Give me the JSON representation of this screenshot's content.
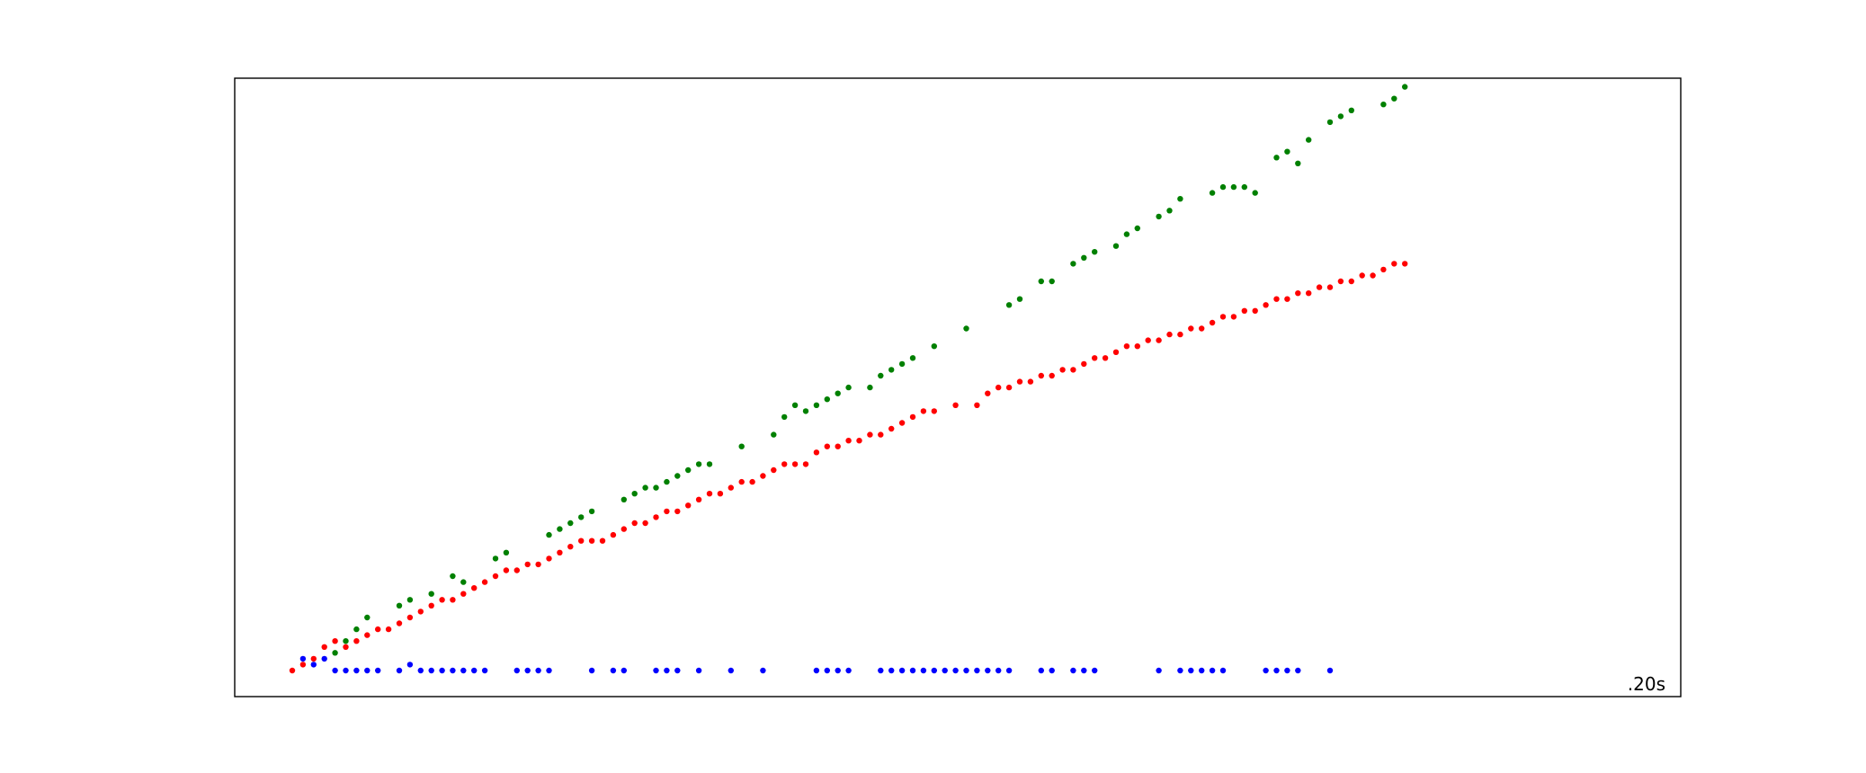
{
  "chart_data": {
    "type": "scatter",
    "corner_label": ".20s",
    "xlim": [
      0,
      116
    ],
    "ylim": [
      0,
      100
    ],
    "grid": false,
    "legend": "none",
    "colors": {
      "axes": "#000000",
      "background": "#ffffff"
    },
    "series": [
      {
        "color": "#008000",
        "points": [
          [
            4,
            3
          ],
          [
            5,
            5
          ],
          [
            6,
            7
          ],
          [
            7,
            9
          ],
          [
            10,
            11
          ],
          [
            11,
            12
          ],
          [
            13,
            13
          ],
          [
            15,
            16
          ],
          [
            16,
            15
          ],
          [
            19,
            19
          ],
          [
            20,
            20
          ],
          [
            24,
            23
          ],
          [
            25,
            24
          ],
          [
            26,
            25
          ],
          [
            27,
            26
          ],
          [
            28,
            27
          ],
          [
            31,
            29
          ],
          [
            32,
            30
          ],
          [
            33,
            31
          ],
          [
            34,
            31
          ],
          [
            35,
            32
          ],
          [
            36,
            33
          ],
          [
            37,
            34
          ],
          [
            38,
            35
          ],
          [
            39,
            35
          ],
          [
            42,
            38
          ],
          [
            45,
            40
          ],
          [
            46,
            43
          ],
          [
            47,
            45
          ],
          [
            48,
            44
          ],
          [
            49,
            45
          ],
          [
            50,
            46
          ],
          [
            51,
            47
          ],
          [
            52,
            48
          ],
          [
            54,
            48
          ],
          [
            55,
            50
          ],
          [
            56,
            51
          ],
          [
            57,
            52
          ],
          [
            58,
            53
          ],
          [
            60,
            55
          ],
          [
            63,
            58
          ],
          [
            67,
            62
          ],
          [
            68,
            63
          ],
          [
            70,
            66
          ],
          [
            71,
            66
          ],
          [
            73,
            69
          ],
          [
            74,
            70
          ],
          [
            75,
            71
          ],
          [
            77,
            72
          ],
          [
            78,
            74
          ],
          [
            79,
            75
          ],
          [
            81,
            77
          ],
          [
            82,
            78
          ],
          [
            83,
            80
          ],
          [
            86,
            81
          ],
          [
            87,
            82
          ],
          [
            88,
            82
          ],
          [
            89,
            82
          ],
          [
            90,
            81
          ],
          [
            92,
            87
          ],
          [
            93,
            88
          ],
          [
            94,
            86
          ],
          [
            95,
            90
          ],
          [
            97,
            93
          ],
          [
            98,
            94
          ],
          [
            99,
            95
          ],
          [
            102,
            96
          ],
          [
            103,
            97
          ],
          [
            104,
            99
          ]
        ]
      },
      {
        "color": "#ff0000",
        "points": [
          [
            0,
            0
          ],
          [
            1,
            1
          ],
          [
            2,
            2
          ],
          [
            3,
            4
          ],
          [
            4,
            5
          ],
          [
            5,
            4
          ],
          [
            6,
            5
          ],
          [
            7,
            6
          ],
          [
            8,
            7
          ],
          [
            9,
            7
          ],
          [
            10,
            8
          ],
          [
            11,
            9
          ],
          [
            12,
            10
          ],
          [
            13,
            11
          ],
          [
            14,
            12
          ],
          [
            15,
            12
          ],
          [
            16,
            13
          ],
          [
            17,
            14
          ],
          [
            18,
            15
          ],
          [
            19,
            16
          ],
          [
            20,
            17
          ],
          [
            21,
            17
          ],
          [
            22,
            18
          ],
          [
            23,
            18
          ],
          [
            24,
            19
          ],
          [
            25,
            20
          ],
          [
            26,
            21
          ],
          [
            27,
            22
          ],
          [
            28,
            22
          ],
          [
            29,
            22
          ],
          [
            30,
            23
          ],
          [
            31,
            24
          ],
          [
            32,
            25
          ],
          [
            33,
            25
          ],
          [
            34,
            26
          ],
          [
            35,
            27
          ],
          [
            36,
            27
          ],
          [
            37,
            28
          ],
          [
            38,
            29
          ],
          [
            39,
            30
          ],
          [
            40,
            30
          ],
          [
            41,
            31
          ],
          [
            42,
            32
          ],
          [
            43,
            32
          ],
          [
            44,
            33
          ],
          [
            45,
            34
          ],
          [
            46,
            35
          ],
          [
            47,
            35
          ],
          [
            48,
            35
          ],
          [
            49,
            37
          ],
          [
            50,
            38
          ],
          [
            51,
            38
          ],
          [
            52,
            39
          ],
          [
            53,
            39
          ],
          [
            54,
            40
          ],
          [
            55,
            40
          ],
          [
            56,
            41
          ],
          [
            57,
            42
          ],
          [
            58,
            43
          ],
          [
            59,
            44
          ],
          [
            60,
            44
          ],
          [
            62,
            45
          ],
          [
            64,
            45
          ],
          [
            65,
            47
          ],
          [
            66,
            48
          ],
          [
            67,
            48
          ],
          [
            68,
            49
          ],
          [
            69,
            49
          ],
          [
            70,
            50
          ],
          [
            71,
            50
          ],
          [
            72,
            51
          ],
          [
            73,
            51
          ],
          [
            74,
            52
          ],
          [
            75,
            53
          ],
          [
            76,
            53
          ],
          [
            77,
            54
          ],
          [
            78,
            55
          ],
          [
            79,
            55
          ],
          [
            80,
            56
          ],
          [
            81,
            56
          ],
          [
            82,
            57
          ],
          [
            83,
            57
          ],
          [
            84,
            58
          ],
          [
            85,
            58
          ],
          [
            86,
            59
          ],
          [
            87,
            60
          ],
          [
            88,
            60
          ],
          [
            89,
            61
          ],
          [
            90,
            61
          ],
          [
            91,
            62
          ],
          [
            92,
            63
          ],
          [
            93,
            63
          ],
          [
            94,
            64
          ],
          [
            95,
            64
          ],
          [
            96,
            65
          ],
          [
            97,
            65
          ],
          [
            98,
            66
          ],
          [
            99,
            66
          ],
          [
            100,
            67
          ],
          [
            101,
            67
          ],
          [
            102,
            68
          ],
          [
            103,
            69
          ],
          [
            104,
            69
          ]
        ]
      },
      {
        "color": "#0000ff",
        "points": [
          [
            1,
            2
          ],
          [
            2,
            1
          ],
          [
            3,
            2
          ],
          [
            4,
            0
          ],
          [
            5,
            0
          ],
          [
            6,
            0
          ],
          [
            7,
            0
          ],
          [
            8,
            0
          ],
          [
            10,
            0
          ],
          [
            11,
            1
          ],
          [
            12,
            0
          ],
          [
            13,
            0
          ],
          [
            14,
            0
          ],
          [
            15,
            0
          ],
          [
            16,
            0
          ],
          [
            17,
            0
          ],
          [
            18,
            0
          ],
          [
            21,
            0
          ],
          [
            22,
            0
          ],
          [
            23,
            0
          ],
          [
            24,
            0
          ],
          [
            28,
            0
          ],
          [
            30,
            0
          ],
          [
            31,
            0
          ],
          [
            34,
            0
          ],
          [
            35,
            0
          ],
          [
            36,
            0
          ],
          [
            38,
            0
          ],
          [
            41,
            0
          ],
          [
            44,
            0
          ],
          [
            49,
            0
          ],
          [
            50,
            0
          ],
          [
            51,
            0
          ],
          [
            52,
            0
          ],
          [
            55,
            0
          ],
          [
            56,
            0
          ],
          [
            57,
            0
          ],
          [
            58,
            0
          ],
          [
            59,
            0
          ],
          [
            60,
            0
          ],
          [
            61,
            0
          ],
          [
            62,
            0
          ],
          [
            63,
            0
          ],
          [
            64,
            0
          ],
          [
            65,
            0
          ],
          [
            66,
            0
          ],
          [
            67,
            0
          ],
          [
            70,
            0
          ],
          [
            71,
            0
          ],
          [
            73,
            0
          ],
          [
            74,
            0
          ],
          [
            75,
            0
          ],
          [
            81,
            0
          ],
          [
            83,
            0
          ],
          [
            84,
            0
          ],
          [
            85,
            0
          ],
          [
            86,
            0
          ],
          [
            87,
            0
          ],
          [
            91,
            0
          ],
          [
            92,
            0
          ],
          [
            93,
            0
          ],
          [
            94,
            0
          ],
          [
            97,
            0
          ]
        ]
      }
    ]
  }
}
